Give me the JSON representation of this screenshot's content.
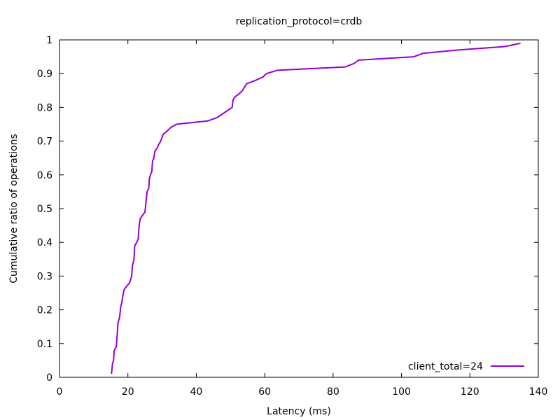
{
  "chart_data": {
    "type": "line",
    "title": "replication_protocol=crdb",
    "xlabel": "Latency (ms)",
    "ylabel": "Cumulative ratio of operations",
    "xlim": [
      0,
      140
    ],
    "ylim": [
      0,
      1
    ],
    "xticks": [
      0,
      20,
      40,
      60,
      80,
      100,
      120,
      140
    ],
    "yticks": [
      0,
      0.1,
      0.2,
      0.3,
      0.4,
      0.5,
      0.6,
      0.7,
      0.8,
      0.9,
      1
    ],
    "grid": false,
    "legend_position": "bottom-right",
    "series": [
      {
        "name": "client_total=24",
        "color": "#9400d3",
        "points": [
          [
            15.2,
            0.01
          ],
          [
            15.5,
            0.04
          ],
          [
            15.8,
            0.05
          ],
          [
            16.0,
            0.08
          ],
          [
            16.6,
            0.09
          ],
          [
            16.9,
            0.13
          ],
          [
            17.1,
            0.16
          ],
          [
            17.6,
            0.18
          ],
          [
            17.9,
            0.21
          ],
          [
            18.2,
            0.22
          ],
          [
            18.5,
            0.24
          ],
          [
            18.9,
            0.26
          ],
          [
            19.6,
            0.27
          ],
          [
            20.5,
            0.28
          ],
          [
            21.1,
            0.3
          ],
          [
            21.3,
            0.33
          ],
          [
            21.8,
            0.35
          ],
          [
            22.0,
            0.39
          ],
          [
            22.6,
            0.4
          ],
          [
            23.0,
            0.41
          ],
          [
            23.3,
            0.45
          ],
          [
            23.6,
            0.47
          ],
          [
            24.3,
            0.48
          ],
          [
            25.0,
            0.49
          ],
          [
            25.3,
            0.52
          ],
          [
            25.6,
            0.55
          ],
          [
            26.1,
            0.56
          ],
          [
            26.3,
            0.59
          ],
          [
            26.6,
            0.6
          ],
          [
            27.0,
            0.61
          ],
          [
            27.2,
            0.64
          ],
          [
            27.6,
            0.65
          ],
          [
            27.9,
            0.67
          ],
          [
            28.6,
            0.68
          ],
          [
            29.0,
            0.69
          ],
          [
            29.6,
            0.7
          ],
          [
            30.3,
            0.72
          ],
          [
            31.5,
            0.73
          ],
          [
            32.5,
            0.74
          ],
          [
            34.2,
            0.75
          ],
          [
            43.4,
            0.76
          ],
          [
            46.1,
            0.77
          ],
          [
            47.6,
            0.78
          ],
          [
            50.5,
            0.8
          ],
          [
            50.7,
            0.82
          ],
          [
            51.2,
            0.83
          ],
          [
            52.5,
            0.84
          ],
          [
            53.5,
            0.85
          ],
          [
            54.7,
            0.87
          ],
          [
            57.3,
            0.88
          ],
          [
            59.5,
            0.89
          ],
          [
            60.5,
            0.9
          ],
          [
            63.7,
            0.91
          ],
          [
            83.6,
            0.92
          ],
          [
            86.1,
            0.93
          ],
          [
            87.5,
            0.94
          ],
          [
            103.6,
            0.95
          ],
          [
            106.2,
            0.96
          ],
          [
            116.3,
            0.97
          ],
          [
            130.0,
            0.98
          ],
          [
            134.8,
            0.99
          ]
        ]
      }
    ]
  }
}
